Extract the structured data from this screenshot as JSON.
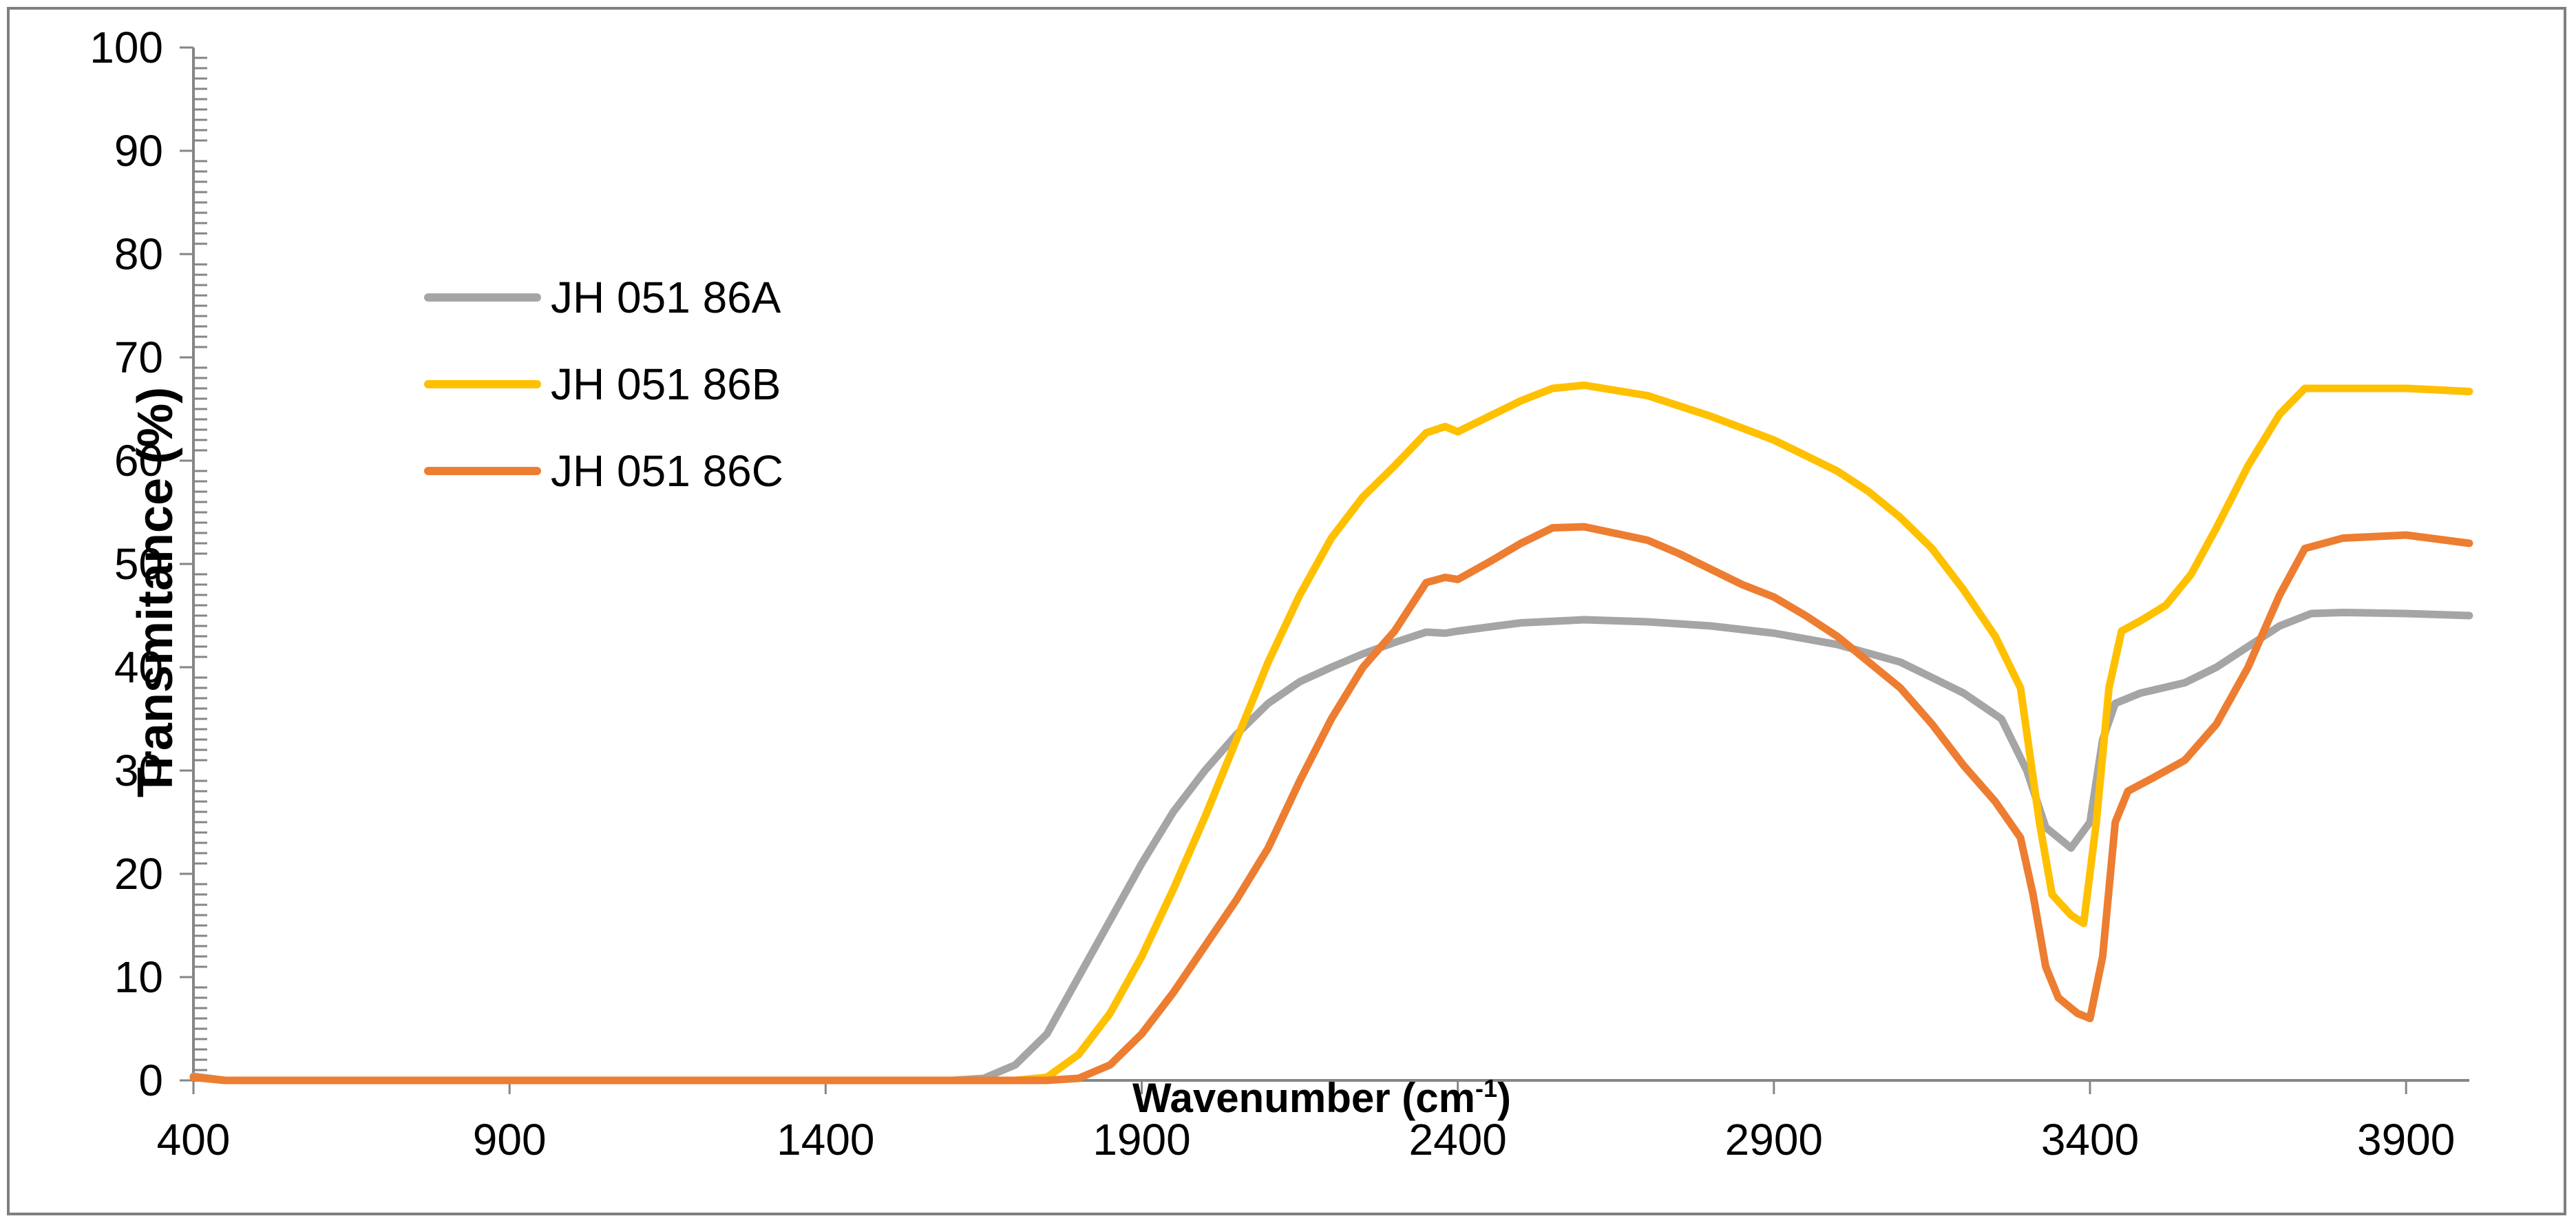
{
  "chart_data": {
    "type": "line",
    "title": "",
    "xlabel": "Wavenumber (cm",
    "xlabel_sup": "-1",
    "xlabel_close": ")",
    "ylabel": "Transmitance (%)",
    "xlim": [
      400,
      4000
    ],
    "ylim": [
      0,
      100
    ],
    "xticks": [
      400,
      900,
      1400,
      1900,
      2400,
      2900,
      3400,
      3900
    ],
    "yticks": [
      0,
      10,
      20,
      30,
      40,
      50,
      60,
      70,
      80,
      90,
      100
    ],
    "grid": false,
    "legend_position": "upper-left",
    "series": [
      {
        "name": "JH 051 86A",
        "color": "#a5a5a5",
        "points": [
          [
            400,
            0.4
          ],
          [
            450,
            0
          ],
          [
            1600,
            0
          ],
          [
            1650,
            0.2
          ],
          [
            1700,
            1.5
          ],
          [
            1750,
            4.5
          ],
          [
            1800,
            10
          ],
          [
            1850,
            15.5
          ],
          [
            1900,
            21
          ],
          [
            1950,
            26
          ],
          [
            2000,
            30
          ],
          [
            2050,
            33.5
          ],
          [
            2100,
            36.5
          ],
          [
            2150,
            38.6
          ],
          [
            2200,
            40
          ],
          [
            2250,
            41.3
          ],
          [
            2300,
            42.4
          ],
          [
            2350,
            43.4
          ],
          [
            2380,
            43.3
          ],
          [
            2400,
            43.5
          ],
          [
            2500,
            44.3
          ],
          [
            2600,
            44.6
          ],
          [
            2700,
            44.4
          ],
          [
            2800,
            44
          ],
          [
            2900,
            43.3
          ],
          [
            3000,
            42.2
          ],
          [
            3100,
            40.5
          ],
          [
            3200,
            37.5
          ],
          [
            3260,
            35
          ],
          [
            3300,
            30
          ],
          [
            3330,
            24.5
          ],
          [
            3370,
            22.5
          ],
          [
            3400,
            25
          ],
          [
            3420,
            33
          ],
          [
            3440,
            36.5
          ],
          [
            3480,
            37.5
          ],
          [
            3550,
            38.5
          ],
          [
            3600,
            40
          ],
          [
            3650,
            42
          ],
          [
            3700,
            44
          ],
          [
            3750,
            45.2
          ],
          [
            3800,
            45.3
          ],
          [
            3900,
            45.2
          ],
          [
            4000,
            45
          ]
        ]
      },
      {
        "name": "JH 051 86B",
        "color": "#ffc000",
        "points": [
          [
            400,
            0.3
          ],
          [
            450,
            0
          ],
          [
            1700,
            0
          ],
          [
            1750,
            0.3
          ],
          [
            1800,
            2.5
          ],
          [
            1850,
            6.5
          ],
          [
            1900,
            12
          ],
          [
            1950,
            18.5
          ],
          [
            2000,
            25.5
          ],
          [
            2050,
            33
          ],
          [
            2100,
            40.5
          ],
          [
            2150,
            47
          ],
          [
            2200,
            52.5
          ],
          [
            2250,
            56.5
          ],
          [
            2300,
            59.5
          ],
          [
            2350,
            62.7
          ],
          [
            2380,
            63.3
          ],
          [
            2400,
            62.8
          ],
          [
            2450,
            64.3
          ],
          [
            2500,
            65.8
          ],
          [
            2550,
            67
          ],
          [
            2600,
            67.3
          ],
          [
            2700,
            66.3
          ],
          [
            2800,
            64.3
          ],
          [
            2900,
            62
          ],
          [
            2950,
            60.5
          ],
          [
            3000,
            59
          ],
          [
            3050,
            57
          ],
          [
            3100,
            54.5
          ],
          [
            3150,
            51.5
          ],
          [
            3200,
            47.5
          ],
          [
            3250,
            43
          ],
          [
            3290,
            38
          ],
          [
            3320,
            25
          ],
          [
            3340,
            18
          ],
          [
            3370,
            16
          ],
          [
            3390,
            15.2
          ],
          [
            3410,
            25
          ],
          [
            3430,
            38
          ],
          [
            3450,
            43.5
          ],
          [
            3480,
            44.5
          ],
          [
            3520,
            46
          ],
          [
            3560,
            49
          ],
          [
            3600,
            53.5
          ],
          [
            3650,
            59.5
          ],
          [
            3700,
            64.5
          ],
          [
            3740,
            67
          ],
          [
            3800,
            67
          ],
          [
            3900,
            67
          ],
          [
            4000,
            66.7
          ]
        ]
      },
      {
        "name": "JH 051 86C",
        "color": "#ed7d31",
        "points": [
          [
            400,
            0.3
          ],
          [
            450,
            0
          ],
          [
            1750,
            0
          ],
          [
            1800,
            0.2
          ],
          [
            1850,
            1.5
          ],
          [
            1900,
            4.5
          ],
          [
            1950,
            8.5
          ],
          [
            2000,
            13
          ],
          [
            2050,
            17.5
          ],
          [
            2100,
            22.5
          ],
          [
            2150,
            29
          ],
          [
            2200,
            35
          ],
          [
            2250,
            40
          ],
          [
            2300,
            43.5
          ],
          [
            2350,
            48.2
          ],
          [
            2380,
            48.7
          ],
          [
            2400,
            48.5
          ],
          [
            2450,
            50.2
          ],
          [
            2500,
            52
          ],
          [
            2550,
            53.5
          ],
          [
            2600,
            53.6
          ],
          [
            2700,
            52.3
          ],
          [
            2750,
            51
          ],
          [
            2800,
            49.5
          ],
          [
            2850,
            48
          ],
          [
            2900,
            46.8
          ],
          [
            2950,
            45
          ],
          [
            3000,
            43
          ],
          [
            3050,
            40.5
          ],
          [
            3100,
            38
          ],
          [
            3150,
            34.5
          ],
          [
            3200,
            30.5
          ],
          [
            3250,
            27
          ],
          [
            3290,
            23.5
          ],
          [
            3310,
            18
          ],
          [
            3330,
            11
          ],
          [
            3350,
            8
          ],
          [
            3380,
            6.5
          ],
          [
            3400,
            6
          ],
          [
            3420,
            12
          ],
          [
            3440,
            25
          ],
          [
            3460,
            28
          ],
          [
            3500,
            29.3
          ],
          [
            3550,
            31
          ],
          [
            3600,
            34.5
          ],
          [
            3650,
            40
          ],
          [
            3700,
            47
          ],
          [
            3740,
            51.5
          ],
          [
            3800,
            52.5
          ],
          [
            3900,
            52.8
          ],
          [
            4000,
            52
          ]
        ]
      }
    ]
  }
}
